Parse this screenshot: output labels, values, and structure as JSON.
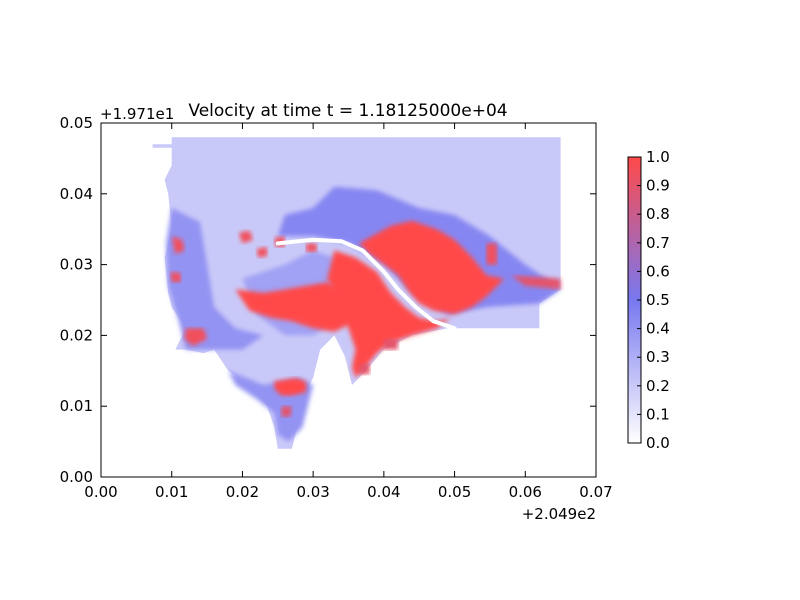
{
  "chart_data": {
    "type": "heatmap",
    "title": "Velocity at time t = 1.18125000e+04",
    "x_offset_label": "+2.049e2",
    "y_offset_label": "+1.971e1",
    "xlim": [
      0.0,
      0.07
    ],
    "ylim": [
      0.0,
      0.05
    ],
    "x_ticks": [
      0.0,
      0.01,
      0.02,
      0.03,
      0.04,
      0.05,
      0.06,
      0.07
    ],
    "x_tick_labels": [
      "0.00",
      "0.01",
      "0.02",
      "0.03",
      "0.04",
      "0.05",
      "0.06",
      "0.07"
    ],
    "y_ticks": [
      0.0,
      0.01,
      0.02,
      0.03,
      0.04,
      0.05
    ],
    "y_tick_labels": [
      "0.00",
      "0.01",
      "0.02",
      "0.03",
      "0.04",
      "0.05"
    ],
    "grid": false,
    "colorbar": {
      "range": [
        0.0,
        1.0
      ],
      "ticks": [
        0.0,
        0.1,
        0.2,
        0.3,
        0.4,
        0.5,
        0.6,
        0.7,
        0.8,
        0.9,
        1.0
      ],
      "tick_labels": [
        "0.0",
        "0.1",
        "0.2",
        "0.3",
        "0.4",
        "0.5",
        "0.6",
        "0.7",
        "0.8",
        "0.9",
        "1.0"
      ],
      "colors": [
        "#ffffff",
        "#7878f0",
        "#ff4a4a"
      ]
    },
    "regions": [
      {
        "name": "domain",
        "value": 0.2,
        "polygon": [
          [
            0.0073,
            0.047
          ],
          [
            0.01,
            0.047
          ],
          [
            0.01,
            0.048
          ],
          [
            0.065,
            0.048
          ],
          [
            0.065,
            0.0265
          ],
          [
            0.062,
            0.0245
          ],
          [
            0.062,
            0.021
          ],
          [
            0.0545,
            0.021
          ],
          [
            0.049,
            0.021
          ],
          [
            0.044,
            0.02
          ],
          [
            0.04,
            0.018
          ],
          [
            0.037,
            0.0145
          ],
          [
            0.0355,
            0.013
          ],
          [
            0.0345,
            0.017
          ],
          [
            0.033,
            0.02
          ],
          [
            0.031,
            0.018
          ],
          [
            0.03,
            0.014
          ],
          [
            0.029,
            0.012
          ],
          [
            0.028,
            0.008
          ],
          [
            0.027,
            0.004
          ],
          [
            0.025,
            0.004
          ],
          [
            0.0245,
            0.007
          ],
          [
            0.0235,
            0.01
          ],
          [
            0.021,
            0.013
          ],
          [
            0.018,
            0.015
          ],
          [
            0.016,
            0.018
          ],
          [
            0.0145,
            0.0175
          ],
          [
            0.012,
            0.018
          ],
          [
            0.0105,
            0.018
          ],
          [
            0.012,
            0.021
          ],
          [
            0.01,
            0.024
          ],
          [
            0.0095,
            0.026
          ],
          [
            0.009,
            0.031
          ],
          [
            0.01,
            0.035
          ],
          [
            0.0095,
            0.04
          ],
          [
            0.009,
            0.042
          ],
          [
            0.01,
            0.044
          ],
          [
            0.01,
            0.0465
          ],
          [
            0.0073,
            0.0465
          ]
        ]
      },
      {
        "name": "band-upper",
        "value": 0.45,
        "polygon": [
          [
            0.033,
            0.041
          ],
          [
            0.039,
            0.0405
          ],
          [
            0.045,
            0.038
          ],
          [
            0.05,
            0.037
          ],
          [
            0.055,
            0.034
          ],
          [
            0.06,
            0.03
          ],
          [
            0.063,
            0.028
          ],
          [
            0.065,
            0.0265
          ],
          [
            0.062,
            0.0245
          ],
          [
            0.0545,
            0.024
          ],
          [
            0.049,
            0.023
          ],
          [
            0.044,
            0.026
          ],
          [
            0.04,
            0.03
          ],
          [
            0.035,
            0.033
          ],
          [
            0.03,
            0.034
          ],
          [
            0.025,
            0.034
          ],
          [
            0.026,
            0.037
          ],
          [
            0.03,
            0.038
          ]
        ]
      },
      {
        "name": "band-left",
        "value": 0.4,
        "polygon": [
          [
            0.01,
            0.038
          ],
          [
            0.014,
            0.036
          ],
          [
            0.015,
            0.03
          ],
          [
            0.016,
            0.024
          ],
          [
            0.019,
            0.021
          ],
          [
            0.023,
            0.02
          ],
          [
            0.02,
            0.018
          ],
          [
            0.015,
            0.018
          ],
          [
            0.012,
            0.018
          ],
          [
            0.011,
            0.022
          ],
          [
            0.0095,
            0.027
          ],
          [
            0.0092,
            0.033
          ]
        ]
      },
      {
        "name": "band-bottom",
        "value": 0.4,
        "polygon": [
          [
            0.018,
            0.015
          ],
          [
            0.023,
            0.013
          ],
          [
            0.028,
            0.014
          ],
          [
            0.03,
            0.013
          ],
          [
            0.0285,
            0.007
          ],
          [
            0.0265,
            0.005
          ],
          [
            0.025,
            0.006
          ],
          [
            0.0245,
            0.009
          ],
          [
            0.022,
            0.011
          ],
          [
            0.019,
            0.013
          ]
        ]
      },
      {
        "name": "band-center",
        "value": 0.35,
        "polygon": [
          [
            0.02,
            0.028
          ],
          [
            0.026,
            0.03
          ],
          [
            0.03,
            0.032
          ],
          [
            0.033,
            0.031
          ],
          [
            0.035,
            0.027
          ],
          [
            0.033,
            0.022
          ],
          [
            0.03,
            0.02
          ],
          [
            0.026,
            0.02
          ],
          [
            0.022,
            0.023
          ]
        ]
      },
      {
        "name": "fast-east",
        "value": 1.0,
        "polygon": [
          [
            0.0365,
            0.033
          ],
          [
            0.041,
            0.0355
          ],
          [
            0.044,
            0.0362
          ],
          [
            0.0475,
            0.035
          ],
          [
            0.05,
            0.0335
          ],
          [
            0.0525,
            0.031
          ],
          [
            0.0545,
            0.0285
          ],
          [
            0.057,
            0.028
          ],
          [
            0.0545,
            0.0255
          ],
          [
            0.0525,
            0.024
          ],
          [
            0.05,
            0.023
          ],
          [
            0.047,
            0.0235
          ],
          [
            0.045,
            0.0245
          ],
          [
            0.0435,
            0.0262
          ],
          [
            0.042,
            0.0285
          ],
          [
            0.04,
            0.03
          ],
          [
            0.038,
            0.0315
          ]
        ]
      },
      {
        "name": "fast-channel",
        "value": 1.0,
        "polygon": [
          [
            0.033,
            0.032
          ],
          [
            0.036,
            0.031
          ],
          [
            0.039,
            0.029
          ],
          [
            0.041,
            0.026
          ],
          [
            0.043,
            0.024
          ],
          [
            0.045,
            0.0225
          ],
          [
            0.0475,
            0.022
          ],
          [
            0.0495,
            0.0225
          ],
          [
            0.0475,
            0.021
          ],
          [
            0.044,
            0.02
          ],
          [
            0.041,
            0.019
          ],
          [
            0.039,
            0.0175
          ],
          [
            0.037,
            0.015
          ],
          [
            0.036,
            0.014
          ],
          [
            0.0355,
            0.0155
          ],
          [
            0.036,
            0.018
          ],
          [
            0.035,
            0.021
          ],
          [
            0.034,
            0.023
          ],
          [
            0.033,
            0.026
          ],
          [
            0.032,
            0.028
          ]
        ]
      },
      {
        "name": "fast-central",
        "value": 1.0,
        "polygon": [
          [
            0.019,
            0.0265
          ],
          [
            0.023,
            0.026
          ],
          [
            0.026,
            0.0265
          ],
          [
            0.029,
            0.027
          ],
          [
            0.032,
            0.0275
          ],
          [
            0.034,
            0.0265
          ],
          [
            0.036,
            0.024
          ],
          [
            0.035,
            0.0215
          ],
          [
            0.033,
            0.0205
          ],
          [
            0.03,
            0.021
          ],
          [
            0.027,
            0.022
          ],
          [
            0.024,
            0.0225
          ],
          [
            0.021,
            0.0235
          ],
          [
            0.02,
            0.025
          ]
        ]
      },
      {
        "name": "fast-bottom",
        "value": 1.0,
        "polygon": [
          [
            0.0245,
            0.0135
          ],
          [
            0.0275,
            0.014
          ],
          [
            0.029,
            0.0135
          ],
          [
            0.029,
            0.012
          ],
          [
            0.027,
            0.0115
          ],
          [
            0.0255,
            0.0115
          ],
          [
            0.0245,
            0.0125
          ]
        ]
      },
      {
        "name": "fast-bottom-2",
        "value": 0.9,
        "polygon": [
          [
            0.0255,
            0.01
          ],
          [
            0.027,
            0.01
          ],
          [
            0.0268,
            0.0085
          ],
          [
            0.0255,
            0.0085
          ]
        ]
      },
      {
        "name": "fast-left-1",
        "value": 0.95,
        "polygon": [
          [
            0.01,
            0.034
          ],
          [
            0.0115,
            0.0335
          ],
          [
            0.0118,
            0.032
          ],
          [
            0.0105,
            0.0315
          ]
        ]
      },
      {
        "name": "fast-left-2",
        "value": 0.95,
        "polygon": [
          [
            0.0098,
            0.029
          ],
          [
            0.0113,
            0.0288
          ],
          [
            0.0113,
            0.0275
          ],
          [
            0.01,
            0.0275
          ]
        ]
      },
      {
        "name": "fast-left-3",
        "value": 0.95,
        "polygon": [
          [
            0.012,
            0.021
          ],
          [
            0.0145,
            0.021
          ],
          [
            0.015,
            0.0195
          ],
          [
            0.013,
            0.0185
          ],
          [
            0.0118,
            0.0195
          ]
        ]
      },
      {
        "name": "fast-spot-1",
        "value": 0.95,
        "polygon": [
          [
            0.0195,
            0.0345
          ],
          [
            0.021,
            0.0348
          ],
          [
            0.0215,
            0.0335
          ],
          [
            0.02,
            0.033
          ]
        ]
      },
      {
        "name": "fast-spot-2",
        "value": 0.95,
        "polygon": [
          [
            0.022,
            0.0322
          ],
          [
            0.0235,
            0.0325
          ],
          [
            0.0235,
            0.0312
          ],
          [
            0.0222,
            0.031
          ]
        ]
      },
      {
        "name": "fast-spot-3",
        "value": 0.95,
        "polygon": [
          [
            0.0245,
            0.0338
          ],
          [
            0.026,
            0.034
          ],
          [
            0.026,
            0.0325
          ],
          [
            0.0247,
            0.0325
          ]
        ]
      },
      {
        "name": "fast-spot-4",
        "value": 0.95,
        "polygon": [
          [
            0.029,
            0.033
          ],
          [
            0.0305,
            0.033
          ],
          [
            0.0305,
            0.0318
          ],
          [
            0.029,
            0.0318
          ]
        ]
      },
      {
        "name": "fast-spot-5",
        "value": 0.95,
        "polygon": [
          [
            0.0545,
            0.033
          ],
          [
            0.056,
            0.033
          ],
          [
            0.056,
            0.03
          ],
          [
            0.0545,
            0.03
          ]
        ]
      },
      {
        "name": "fast-east-edge",
        "value": 0.9,
        "polygon": [
          [
            0.058,
            0.0285
          ],
          [
            0.065,
            0.028
          ],
          [
            0.065,
            0.0265
          ],
          [
            0.06,
            0.027
          ]
        ]
      },
      {
        "name": "fast-shore-1",
        "value": 0.9,
        "polygon": [
          [
            0.04,
            0.0195
          ],
          [
            0.042,
            0.0195
          ],
          [
            0.042,
            0.018
          ],
          [
            0.04,
            0.018
          ]
        ]
      },
      {
        "name": "fast-shore-2",
        "value": 0.9,
        "polygon": [
          [
            0.0365,
            0.016
          ],
          [
            0.038,
            0.016
          ],
          [
            0.038,
            0.0145
          ],
          [
            0.0365,
            0.0145
          ]
        ]
      }
    ],
    "barrier": {
      "name": "breakwater",
      "points": [
        [
          0.025,
          0.033
        ],
        [
          0.03,
          0.0335
        ],
        [
          0.034,
          0.0333
        ],
        [
          0.037,
          0.032
        ],
        [
          0.04,
          0.029
        ],
        [
          0.042,
          0.0265
        ],
        [
          0.0445,
          0.024
        ],
        [
          0.047,
          0.022
        ],
        [
          0.05,
          0.021
        ]
      ]
    }
  }
}
